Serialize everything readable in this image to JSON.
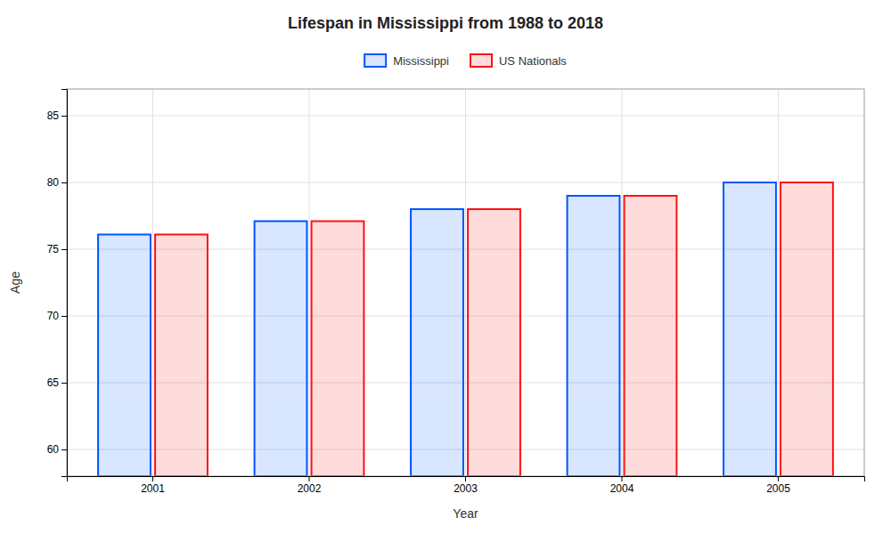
{
  "chart_data": {
    "type": "bar",
    "title": "Lifespan in Mississippi from 1988 to 2018",
    "xlabel": "Year",
    "ylabel": "Age",
    "categories": [
      "2001",
      "2002",
      "2003",
      "2004",
      "2005"
    ],
    "series": [
      {
        "name": "Mississippi",
        "color": "#0055ff",
        "values": [
          76.1,
          77.1,
          78.0,
          79.0,
          80.0
        ]
      },
      {
        "name": "US Nationals",
        "color": "#ff1111",
        "values": [
          76.1,
          77.1,
          78.0,
          79.0,
          80.0
        ]
      }
    ],
    "ylim": [
      58,
      87
    ],
    "yticks": [
      60,
      65,
      70,
      75,
      80,
      85
    ],
    "grid": true,
    "legend": "top"
  }
}
